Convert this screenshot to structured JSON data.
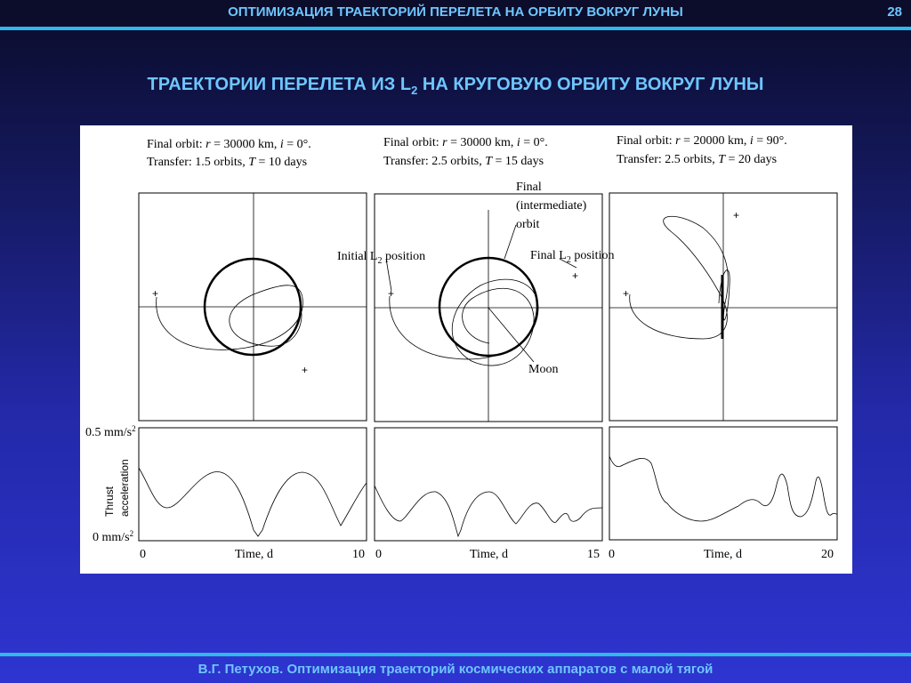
{
  "header": {
    "title": "ОПТИМИЗАЦИЯ ТРАЕКТОРИЙ ПЕРЕЛЕТА НА ОРБИТУ ВОКРУГ ЛУНЫ",
    "page": "28"
  },
  "slide_title": {
    "main": "ТРАЕКТОРИИ ПЕРЕЛЕТА ИЗ L",
    "sub": "2",
    "rest": " НА КРУГОВУЮ ОРБИТУ ВОКРУГ ЛУНЫ"
  },
  "panels": [
    {
      "orbit_prefix": "Final orbit: ",
      "r": "r",
      "r_val": " = 30000 km, ",
      "i": "i",
      "i_val": " = 0°.",
      "transfer_prefix": "Transfer: 1.5 orbits, ",
      "T": "T",
      "T_val": " = 10 days",
      "time_start": "0",
      "time_label": "Time, d",
      "time_end": "10"
    },
    {
      "orbit_prefix": "Final orbit: ",
      "r": "r",
      "r_val": " = 30000 km, ",
      "i": "i",
      "i_val": " = 0°.",
      "transfer_prefix": "Transfer: 2.5 orbits, ",
      "T": "T",
      "T_val": " = 15 days",
      "time_start": "0",
      "time_label": "Time, d",
      "time_end": "15"
    },
    {
      "orbit_prefix": "Final orbit: ",
      "r": "r",
      "r_val": " = 20000 km, ",
      "i": "i",
      "i_val": " = 90°.",
      "transfer_prefix": "Transfer: 2.5 orbits, ",
      "T": "T",
      "T_val": " = 20 days",
      "time_start": "0",
      "time_label": "Time, d",
      "time_end": "20"
    }
  ],
  "annotations": {
    "final_orbit_1": "Final",
    "final_orbit_2": "(intermediate)",
    "final_orbit_3": "orbit",
    "initial_l2": "Initial L",
    "final_l2": "Final L",
    "sub2": "2",
    "position": " position",
    "moon": "Moon"
  },
  "thrust_axis": {
    "top_value": "0.5 mm/s",
    "bottom_value": "0 mm/s",
    "sup": "2",
    "label_1": "Thrust",
    "label_2": "acceleration"
  },
  "footer": "В.Г. Петухов. Оптимизация траекторий космических аппаратов с малой тягой"
}
